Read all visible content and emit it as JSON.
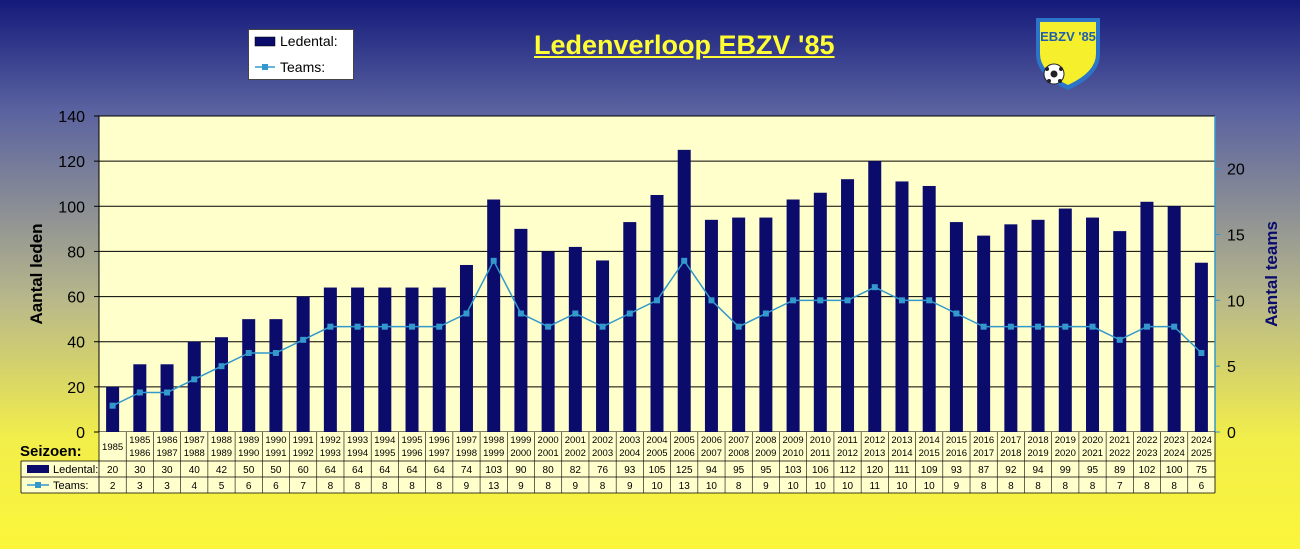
{
  "title": "Ledenverloop EBZV '85",
  "logo": {
    "text": "EBZV '85"
  },
  "colors": {
    "bar": "#0b0b6b",
    "line": "#3399cc",
    "plot_bg": "#ffffcc",
    "title": "#ffff33"
  },
  "table": {
    "seizoen_label": "Seizoen:",
    "ledental_label": "Ledental:",
    "teams_label": "Teams:"
  },
  "chart_data": {
    "type": "bar",
    "title": "Ledenverloop EBZV '85",
    "categories": [
      [
        "1985"
      ],
      [
        "1985",
        "1986"
      ],
      [
        "1986",
        "1987"
      ],
      [
        "1987",
        "1988"
      ],
      [
        "1988",
        "1989"
      ],
      [
        "1989",
        "1990"
      ],
      [
        "1990",
        "1991"
      ],
      [
        "1991",
        "1992"
      ],
      [
        "1992",
        "1993"
      ],
      [
        "1993",
        "1994"
      ],
      [
        "1994",
        "1995"
      ],
      [
        "1995",
        "1996"
      ],
      [
        "1996",
        "1997"
      ],
      [
        "1997",
        "1998"
      ],
      [
        "1998",
        "1999"
      ],
      [
        "1999",
        "2000"
      ],
      [
        "2000",
        "2001"
      ],
      [
        "2001",
        "2002"
      ],
      [
        "2002",
        "2003"
      ],
      [
        "2003",
        "2004"
      ],
      [
        "2004",
        "2005"
      ],
      [
        "2005",
        "2006"
      ],
      [
        "2006",
        "2007"
      ],
      [
        "2007",
        "2008"
      ],
      [
        "2008",
        "2009"
      ],
      [
        "2009",
        "2010"
      ],
      [
        "2010",
        "2011"
      ],
      [
        "2011",
        "2012"
      ],
      [
        "2012",
        "2013"
      ],
      [
        "2013",
        "2014"
      ],
      [
        "2014",
        "2015"
      ],
      [
        "2015",
        "2016"
      ],
      [
        "2016",
        "2017"
      ],
      [
        "2017",
        "2018"
      ],
      [
        "2018",
        "2019"
      ],
      [
        "2019",
        "2020"
      ],
      [
        "2020",
        "2021"
      ],
      [
        "2021",
        "2022"
      ],
      [
        "2022",
        "2023"
      ],
      [
        "2023",
        "2024"
      ],
      [
        "2024",
        "2025"
      ]
    ],
    "series": [
      {
        "name": "Ledental:",
        "type": "bar",
        "axis": "left",
        "values": [
          20,
          30,
          30,
          40,
          42,
          50,
          50,
          60,
          64,
          64,
          64,
          64,
          64,
          74,
          103,
          90,
          80,
          82,
          76,
          93,
          105,
          125,
          94,
          95,
          95,
          103,
          106,
          112,
          120,
          111,
          109,
          93,
          87,
          92,
          94,
          99,
          95,
          89,
          102,
          100,
          75
        ]
      },
      {
        "name": "Teams:",
        "type": "line",
        "axis": "right",
        "values": [
          2,
          3,
          3,
          4,
          5,
          6,
          6,
          7,
          8,
          8,
          8,
          8,
          8,
          9,
          13,
          9,
          8,
          9,
          8,
          9,
          10,
          13,
          10,
          8,
          9,
          10,
          10,
          10,
          11,
          10,
          10,
          9,
          8,
          8,
          8,
          8,
          8,
          7,
          8,
          8,
          6
        ]
      }
    ],
    "ylabel": "Aantal leden",
    "y2label": "Aantal teams",
    "ylim": [
      0,
      140
    ],
    "yticks": [
      0,
      20,
      40,
      60,
      80,
      100,
      120,
      140
    ],
    "y2lim": [
      0,
      24
    ],
    "y2ticks": [
      0,
      5,
      10,
      15,
      20
    ],
    "grid": true,
    "legend": "top-left"
  }
}
